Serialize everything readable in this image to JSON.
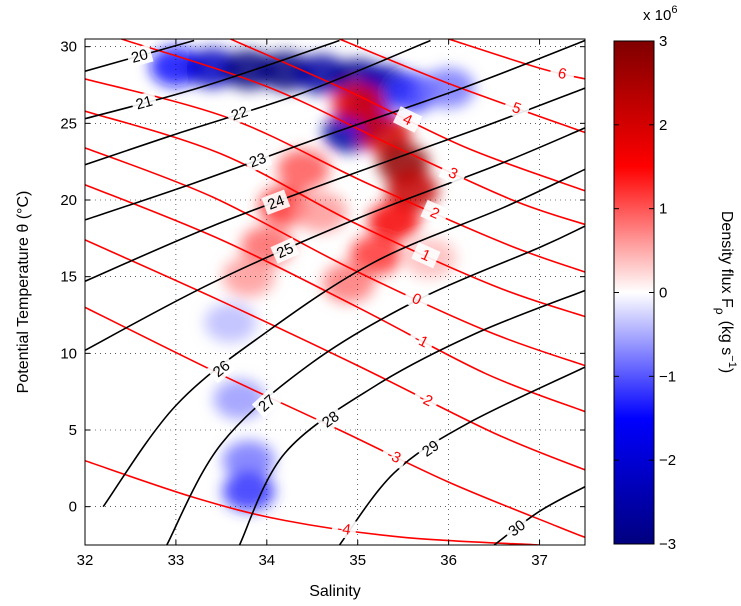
{
  "chart_data": {
    "type": "heatmap",
    "title": "",
    "xlabel": "Salinity",
    "ylabel": "Potential Temperature θ (°C)",
    "xlim": [
      32,
      37.5
    ],
    "ylim": [
      -2.5,
      30.5
    ],
    "xticks": [
      "32",
      "33",
      "34",
      "35",
      "36",
      "37"
    ],
    "yticks": [
      "0",
      "5",
      "10",
      "15",
      "20",
      "25",
      "30"
    ],
    "grid": true,
    "colorbar": {
      "label": "Density flux F",
      "label_sub": "ρ",
      "label_units": "(kg s",
      "label_units_sup": "−1",
      "label_units_end": ")",
      "multiplier": "x 10",
      "multiplier_exp": "6",
      "range": [
        -3,
        3
      ],
      "ticks": [
        "3",
        "2",
        "1",
        "0",
        "−1",
        "−2",
        "−3"
      ],
      "tick_values": [
        3,
        2,
        1,
        0,
        -1,
        -2,
        -3
      ],
      "colors": [
        "#00007f",
        "#0000ff",
        "#ffffff",
        "#ff0000",
        "#7f0000"
      ]
    },
    "density_contours": {
      "color": "#000000",
      "labels": [
        "20",
        "21",
        "22",
        "23",
        "24",
        "25",
        "26",
        "27",
        "28",
        "29",
        "30"
      ],
      "lines": [
        {
          "label": "20",
          "pts": [
            [
              32,
              28.4
            ],
            [
              33.2,
              30.4
            ]
          ]
        },
        {
          "label": "21",
          "pts": [
            [
              32,
              25.3
            ],
            [
              33.3,
              27.4
            ],
            [
              34.8,
              30.4
            ]
          ]
        },
        {
          "label": "22",
          "pts": [
            [
              32,
              22.3
            ],
            [
              33.0,
              24.3
            ],
            [
              34.4,
              27.0
            ],
            [
              35.8,
              30.4
            ]
          ]
        },
        {
          "label": "23",
          "pts": [
            [
              32,
              18.7
            ],
            [
              33.2,
              21.1
            ],
            [
              34.6,
              24.1
            ],
            [
              36.2,
              27.4
            ],
            [
              37.5,
              30.4
            ]
          ]
        },
        {
          "label": "24",
          "pts": [
            [
              32,
              14.7
            ],
            [
              33.4,
              18.3
            ],
            [
              34.8,
              21.4
            ],
            [
              36.3,
              24.6
            ],
            [
              37.5,
              27.3
            ]
          ]
        },
        {
          "label": "25",
          "pts": [
            [
              32,
              10.2
            ],
            [
              33.4,
              14.6
            ],
            [
              35.0,
              18.8
            ],
            [
              36.5,
              22.2
            ],
            [
              37.5,
              24.7
            ]
          ]
        },
        {
          "label": "26",
          "pts": [
            [
              32.2,
              0
            ],
            [
              33.0,
              6.6
            ],
            [
              34.0,
              11.4
            ],
            [
              35.2,
              16.0
            ],
            [
              36.6,
              19.5
            ],
            [
              37.5,
              22.0
            ]
          ]
        },
        {
          "label": "27",
          "pts": [
            [
              32.9,
              -2.5
            ],
            [
              33.5,
              4.1
            ],
            [
              34.5,
              9.4
            ],
            [
              35.7,
              13.6
            ],
            [
              37.0,
              16.9
            ],
            [
              37.5,
              18.3
            ]
          ]
        },
        {
          "label": "28",
          "pts": [
            [
              33.7,
              -2.5
            ],
            [
              34.2,
              3.5
            ],
            [
              35.2,
              7.9
            ],
            [
              36.3,
              11.3
            ],
            [
              37.5,
              14.1
            ]
          ]
        },
        {
          "label": "29",
          "pts": [
            [
              34.8,
              -2.5
            ],
            [
              35.4,
              2.2
            ],
            [
              36.2,
              5.4
            ],
            [
              37.5,
              9.1
            ]
          ]
        },
        {
          "label": "30",
          "pts": [
            [
              36.5,
              -2.5
            ],
            [
              37.0,
              -0.3
            ],
            [
              37.5,
              1.3
            ]
          ]
        }
      ]
    },
    "spiciness_contours": {
      "color": "#ff0000",
      "labels": [
        "-4",
        "-3",
        "-2",
        "-1",
        "0",
        "1",
        "2",
        "3",
        "4",
        "5",
        "6"
      ],
      "lines": [
        {
          "label": "-4",
          "pts": [
            [
              32,
              3.0
            ],
            [
              33.2,
              0.6
            ],
            [
              34.2,
              -0.9
            ],
            [
              35.5,
              -2.0
            ],
            [
              37.0,
              -2.5
            ]
          ]
        },
        {
          "label": "-3",
          "pts": [
            [
              32,
              13.0
            ],
            [
              33.5,
              8.6
            ],
            [
              34.8,
              5.0
            ],
            [
              36.0,
              1.6
            ],
            [
              37.2,
              -1.3
            ],
            [
              37.5,
              -2.0
            ]
          ]
        },
        {
          "label": "-2",
          "pts": [
            [
              32,
              17.4
            ],
            [
              33.5,
              13.4
            ],
            [
              35.0,
              9.2
            ],
            [
              36.5,
              4.8
            ],
            [
              37.5,
              2.4
            ]
          ]
        },
        {
          "label": "-1",
          "pts": [
            [
              32,
              21.0
            ],
            [
              33.5,
              17.4
            ],
            [
              35.0,
              13.0
            ],
            [
              36.4,
              8.7
            ],
            [
              37.5,
              6.2
            ]
          ]
        },
        {
          "label": "0",
          "pts": [
            [
              32,
              23.4
            ],
            [
              33.4,
              20.2
            ],
            [
              34.9,
              15.6
            ],
            [
              36.4,
              11.5
            ],
            [
              37.5,
              9.2
            ]
          ]
        },
        {
          "label": "1",
          "pts": [
            [
              32,
              25.8
            ],
            [
              33.5,
              23.0
            ],
            [
              35.0,
              18.4
            ],
            [
              36.5,
              14.4
            ],
            [
              37.5,
              12.4
            ]
          ]
        },
        {
          "label": "2",
          "pts": [
            [
              32,
              27.9
            ],
            [
              33.6,
              25.3
            ],
            [
              35.1,
              21.1
            ],
            [
              36.6,
              17.2
            ],
            [
              37.5,
              15.3
            ]
          ]
        },
        {
          "label": "3",
          "pts": [
            [
              32.4,
              30.5
            ],
            [
              34.0,
              27.4
            ],
            [
              35.4,
              23.5
            ],
            [
              36.7,
              20.0
            ],
            [
              37.5,
              18.4
            ]
          ]
        },
        {
          "label": "4",
          "pts": [
            [
              33.6,
              30.5
            ],
            [
              34.9,
              27.1
            ],
            [
              36.2,
              23.4
            ],
            [
              37.5,
              20.6
            ]
          ]
        },
        {
          "label": "5",
          "pts": [
            [
              34.8,
              30.5
            ],
            [
              36.0,
              27.6
            ],
            [
              37.5,
              24.4
            ]
          ]
        },
        {
          "label": "6",
          "pts": [
            [
              36.0,
              30.5
            ],
            [
              37.0,
              28.6
            ],
            [
              37.5,
              27.9
            ]
          ]
        }
      ]
    },
    "flux_field": {
      "description_units": "x 10^6 kg s^-1",
      "cells": [
        {
          "s": 33.0,
          "t": 28.7,
          "v": -1.4
        },
        {
          "s": 33.4,
          "t": 28.6,
          "v": -2.2
        },
        {
          "s": 33.8,
          "t": 28.5,
          "v": -3.0
        },
        {
          "s": 34.2,
          "t": 28.4,
          "v": -3.0
        },
        {
          "s": 34.6,
          "t": 28.2,
          "v": -2.6
        },
        {
          "s": 35.0,
          "t": 27.9,
          "v": -2.8
        },
        {
          "s": 35.3,
          "t": 27.5,
          "v": -2.4
        },
        {
          "s": 35.6,
          "t": 27.0,
          "v": -1.2
        },
        {
          "s": 36.0,
          "t": 27.3,
          "v": -0.8
        },
        {
          "s": 34.9,
          "t": 24.4,
          "v": -2.6
        },
        {
          "s": 35.1,
          "t": 25.4,
          "v": -1.8
        },
        {
          "s": 35.0,
          "t": 26.3,
          "v": 1.8
        },
        {
          "s": 35.3,
          "t": 24.3,
          "v": 2.0
        },
        {
          "s": 35.5,
          "t": 22.4,
          "v": 2.8
        },
        {
          "s": 35.6,
          "t": 20.6,
          "v": 2.2
        },
        {
          "s": 35.4,
          "t": 18.6,
          "v": 1.6
        },
        {
          "s": 35.2,
          "t": 16.4,
          "v": 1.2
        },
        {
          "s": 34.9,
          "t": 14.6,
          "v": 0.8
        },
        {
          "s": 34.4,
          "t": 22.0,
          "v": 1.0
        },
        {
          "s": 34.2,
          "t": 19.6,
          "v": 1.2
        },
        {
          "s": 34.0,
          "t": 17.0,
          "v": 0.9
        },
        {
          "s": 33.8,
          "t": 15.0,
          "v": 0.6
        },
        {
          "s": 34.6,
          "t": 19.2,
          "v": 0.6
        },
        {
          "s": 33.7,
          "t": 7.0,
          "v": -0.6
        },
        {
          "s": 33.8,
          "t": 3.0,
          "v": -0.8
        },
        {
          "s": 33.8,
          "t": 1.0,
          "v": -1.2
        },
        {
          "s": 33.6,
          "t": 12.0,
          "v": -0.4
        },
        {
          "s": 35.8,
          "t": 16.2,
          "v": 0.4
        }
      ]
    }
  }
}
